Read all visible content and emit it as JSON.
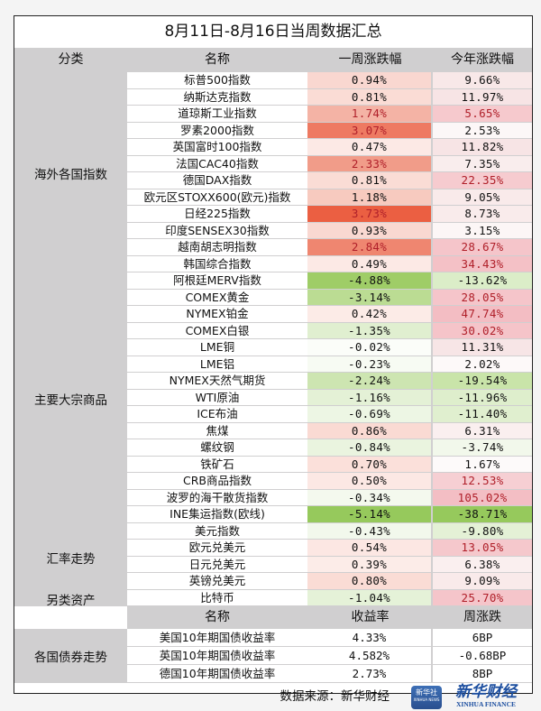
{
  "title": "8月11日-8月16日当周数据汇总",
  "header": {
    "category": "分类",
    "name": "名称",
    "weekly": "一周涨跌幅",
    "ytd": "今年涨跌幅"
  },
  "categories": [
    {
      "label": "海外各国指数",
      "row_start": 0,
      "row_count": 12
    },
    {
      "label": "主要大宗商品",
      "row_start": 12,
      "row_count": 15
    },
    {
      "label": "汇率走势",
      "row_start": 27,
      "row_count": 4
    },
    {
      "label": "另类资产",
      "row_start": 31,
      "row_count": 1
    }
  ],
  "rows": [
    {
      "name": "标普500指数",
      "weekly": "0.94%",
      "ytd": "9.66%",
      "wk_bg": "#f9d7d0",
      "yt_bg": "#f8e8e8",
      "wk_red": false,
      "yt_red": false
    },
    {
      "name": "纳斯达克指数",
      "weekly": "0.81%",
      "ytd": "11.97%",
      "wk_bg": "#fadcd5",
      "yt_bg": "#f7e4e5",
      "wk_red": false,
      "yt_red": false
    },
    {
      "name": "道琼斯工业指数",
      "weekly": "1.74%",
      "ytd": "5.65%",
      "wk_bg": "#f4b3a5",
      "yt_bg": "#f6c9cd",
      "wk_red": true,
      "yt_red": true
    },
    {
      "name": "罗素2000指数",
      "weekly": "3.07%",
      "ytd": "2.53%",
      "wk_bg": "#ee7a62",
      "yt_bg": "#fcf7f7",
      "wk_red": true,
      "yt_red": false
    },
    {
      "name": "英国富时100指数",
      "weekly": "0.47%",
      "ytd": "11.82%",
      "wk_bg": "#fce9e5",
      "yt_bg": "#f7e4e5",
      "wk_red": false,
      "yt_red": false
    },
    {
      "name": "法国CAC40指数",
      "weekly": "2.33%",
      "ytd": "7.35%",
      "wk_bg": "#f19c89",
      "yt_bg": "#f9eded",
      "wk_red": true,
      "yt_red": false
    },
    {
      "name": "德国DAX指数",
      "weekly": "0.81%",
      "ytd": "22.35%",
      "wk_bg": "#fadcd5",
      "yt_bg": "#f6cbcf",
      "wk_red": false,
      "yt_red": true
    },
    {
      "name": "欧元区STOXX600(欧元)指数",
      "weekly": "1.18%",
      "ytd": "9.05%",
      "wk_bg": "#f7cabf",
      "yt_bg": "#f9eaea",
      "wk_red": false,
      "yt_red": false
    },
    {
      "name": "日经225指数",
      "weekly": "3.73%",
      "ytd": "8.73%",
      "wk_bg": "#eb5f42",
      "yt_bg": "#f9ebeb",
      "wk_red": true,
      "yt_red": false
    },
    {
      "name": "印度SENSEX30指数",
      "weekly": "0.93%",
      "ytd": "3.15%",
      "wk_bg": "#f9d8d1",
      "yt_bg": "#fcf6f6",
      "wk_red": false,
      "yt_red": false
    },
    {
      "name": "越南胡志明指数",
      "weekly": "2.84%",
      "ytd": "28.67%",
      "wk_bg": "#ef8670",
      "yt_bg": "#f5c5ca",
      "wk_red": true,
      "yt_red": true
    },
    {
      "name": "韩国综合指数",
      "weekly": "0.49%",
      "ytd": "34.43%",
      "wk_bg": "#fce9e5",
      "yt_bg": "#f4c1c6",
      "wk_red": false,
      "yt_red": true
    },
    {
      "name": "阿根廷MERV指数",
      "weekly": "-4.88%",
      "ytd": "-13.62%",
      "wk_bg": "#9fcd67",
      "yt_bg": "#dbedc8",
      "wk_red": false,
      "yt_red": false
    },
    {
      "name": "COMEX黄金",
      "weekly": "-3.14%",
      "ytd": "28.05%",
      "wk_bg": "#bbdc93",
      "yt_bg": "#f5c5ca",
      "wk_red": false,
      "yt_red": true
    },
    {
      "name": "NYMEX铂金",
      "weekly": "0.42%",
      "ytd": "47.74%",
      "wk_bg": "#fcebe7",
      "yt_bg": "#f3bdc3",
      "wk_red": false,
      "yt_red": true
    },
    {
      "name": "COMEX白银",
      "weekly": "-1.35%",
      "ytd": "30.02%",
      "wk_bg": "#e0efd0",
      "yt_bg": "#f5c4c9",
      "wk_red": false,
      "yt_red": true
    },
    {
      "name": "LME铜",
      "weekly": "-0.02%",
      "ytd": "11.31%",
      "wk_bg": "#fbfdf9",
      "yt_bg": "#f7e5e6",
      "wk_red": false,
      "yt_red": false
    },
    {
      "name": "LME铝",
      "weekly": "-0.23%",
      "ytd": "2.02%",
      "wk_bg": "#f7fbf3",
      "yt_bg": "#fdf9f9",
      "wk_red": false,
      "yt_red": false
    },
    {
      "name": "NYMEX天然气期货",
      "weekly": "-2.24%",
      "ytd": "-19.54%",
      "wk_bg": "#cde5b1",
      "yt_bg": "#c9e4a9",
      "wk_red": false,
      "yt_red": false
    },
    {
      "name": "WTI原油",
      "weekly": "-1.16%",
      "ytd": "-11.96%",
      "wk_bg": "#e4f1d6",
      "yt_bg": "#deeecc",
      "wk_red": false,
      "yt_red": false
    },
    {
      "name": "ICE布油",
      "weekly": "-0.69%",
      "ytd": "-11.40%",
      "wk_bg": "#edf6e4",
      "yt_bg": "#e0efcf",
      "wk_red": false,
      "yt_red": false
    },
    {
      "name": "焦煤",
      "weekly": "0.86%",
      "ytd": "6.31%",
      "wk_bg": "#fadad3",
      "yt_bg": "#faefef",
      "wk_red": false,
      "yt_red": false
    },
    {
      "name": "螺纹钢",
      "weekly": "-0.84%",
      "ytd": "-3.74%",
      "wk_bg": "#eaf4df",
      "yt_bg": "#f2f8eb",
      "wk_red": false,
      "yt_red": false
    },
    {
      "name": "铁矿石",
      "weekly": "0.70%",
      "ytd": "1.67%",
      "wk_bg": "#fbe0da",
      "yt_bg": "#fdfafa",
      "wk_red": false,
      "yt_red": false
    },
    {
      "name": "CRB商品指数",
      "weekly": "0.50%",
      "ytd": "12.53%",
      "wk_bg": "#fce8e4",
      "yt_bg": "#f6cfd3",
      "wk_red": false,
      "yt_red": true
    },
    {
      "name": "波罗的海干散货指数",
      "weekly": "-0.34%",
      "ytd": "105.02%",
      "wk_bg": "#f4f9ee",
      "yt_bg": "#f3bec4",
      "wk_red": false,
      "yt_red": true
    },
    {
      "name": "INE集运指数(欧线)",
      "weekly": "-5.14%",
      "ytd": "-38.71%",
      "wk_bg": "#96c95c",
      "yt_bg": "#96c95c",
      "wk_red": false,
      "yt_red": false
    },
    {
      "name": "美元指数",
      "weekly": "-0.43%",
      "ytd": "-9.80%",
      "wk_bg": "#f2f8ec",
      "yt_bg": "#e4f1d6",
      "wk_red": false,
      "yt_red": false
    },
    {
      "name": "欧元兑美元",
      "weekly": "0.54%",
      "ytd": "13.05%",
      "wk_bg": "#fce7e3",
      "yt_bg": "#f5c8cc",
      "wk_red": false,
      "yt_red": true
    },
    {
      "name": "日元兑美元",
      "weekly": "0.39%",
      "ytd": "6.38%",
      "wk_bg": "#fcece8",
      "yt_bg": "#faefef",
      "wk_red": false,
      "yt_red": false
    },
    {
      "name": "英镑兑美元",
      "weekly": "0.80%",
      "ytd": "9.09%",
      "wk_bg": "#fadcd5",
      "yt_bg": "#f9eaea",
      "wk_red": false,
      "yt_red": false
    },
    {
      "name": "比特币",
      "weekly": "-1.04%",
      "ytd": "25.70%",
      "wk_bg": "#e5f2d8",
      "yt_bg": "#f5c5ca",
      "wk_red": false,
      "yt_red": true
    }
  ],
  "bond_header": {
    "name": "名称",
    "yield": "收益率",
    "weekly": "周涨跌"
  },
  "bond_category": "各国债券走势",
  "bonds": [
    {
      "name": "美国10年期国债收益率",
      "yield": "4.33%",
      "weekly": "6BP"
    },
    {
      "name": "英国10年期国债收益率",
      "yield": "4.582%",
      "weekly": "-0.68BP"
    },
    {
      "name": "德国10年期国债收益率",
      "yield": "2.73%",
      "weekly": "8BP"
    }
  ],
  "footer": {
    "source": "数据来源：新华财经",
    "logo_badge": "新华社",
    "logo_badge_sub": "XINHUA NEWS",
    "logo_cn": "新华财经",
    "logo_en": "XINHUA FINANCE"
  }
}
